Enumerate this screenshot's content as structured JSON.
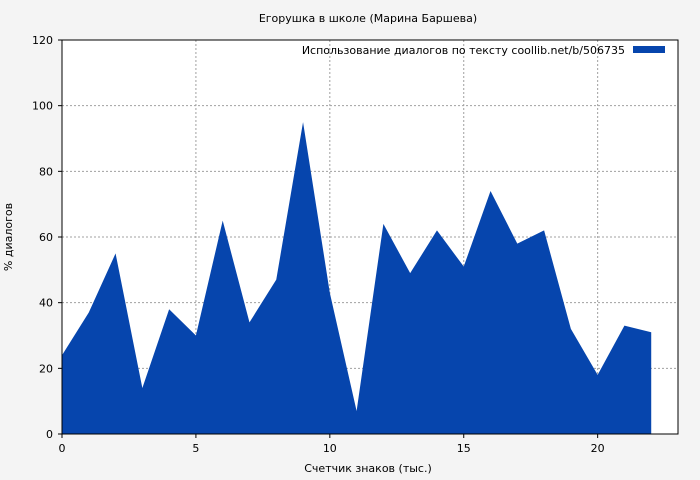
{
  "chart_data": {
    "type": "area",
    "title": "Егорушка в школе (Марина Баршева)",
    "xlabel": "Счетчик знаков (тыс.)",
    "ylabel": "% диалогов",
    "xlim": [
      0,
      23
    ],
    "ylim": [
      0,
      120
    ],
    "xticks": [
      0,
      5,
      10,
      15,
      20
    ],
    "yticks": [
      0,
      20,
      40,
      60,
      80,
      100,
      120
    ],
    "grid": true,
    "legend_position": "top-right",
    "series": [
      {
        "name": "Использование диалогов по тексту  coollib.net/b/506735",
        "color": "#0645ad",
        "x": [
          0,
          1,
          2,
          3,
          4,
          5,
          6,
          7,
          8,
          9,
          10,
          11,
          12,
          13,
          14,
          15,
          16,
          17,
          18,
          19,
          20,
          21,
          22
        ],
        "values": [
          24,
          37,
          55,
          14,
          38,
          30,
          65,
          34,
          47,
          95,
          43,
          7,
          64,
          49,
          62,
          51,
          74,
          58,
          62,
          32,
          18,
          33,
          31
        ]
      }
    ]
  }
}
